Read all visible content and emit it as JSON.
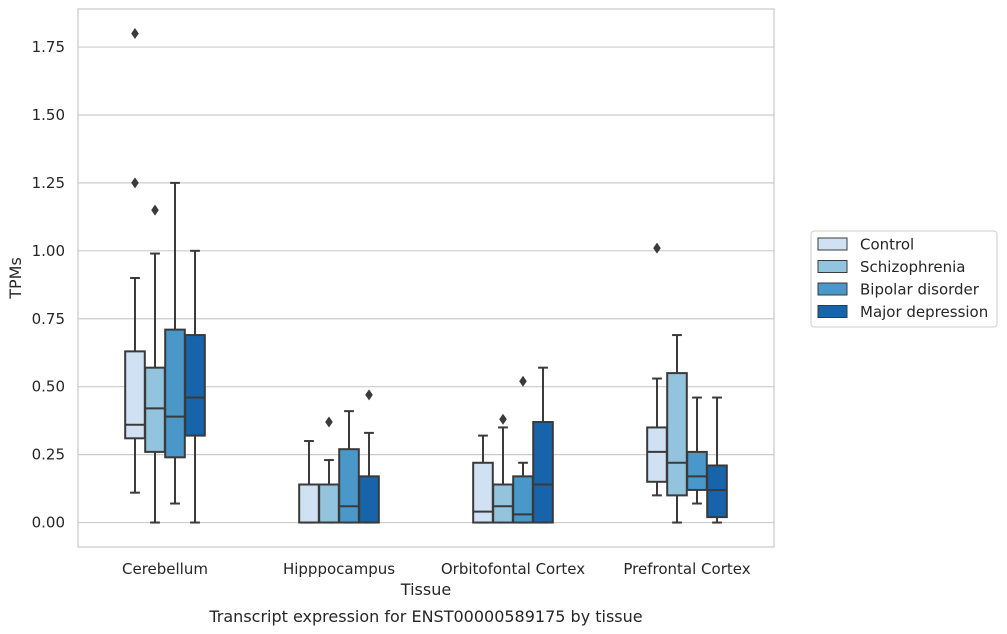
{
  "caption": "Transcript expression for ENST00000589175 by tissue",
  "chart_data": {
    "type": "box",
    "xlabel": "Tissue",
    "ylabel": "TPMs",
    "ylim": [
      -0.09,
      1.89
    ],
    "yticks": [
      0.0,
      0.25,
      0.5,
      0.75,
      1.0,
      1.25,
      1.5,
      1.75
    ],
    "ytick_labels": [
      "0.00",
      "0.25",
      "0.50",
      "0.75",
      "1.00",
      "1.25",
      "1.50",
      "1.75"
    ],
    "grid": "horizontal",
    "legend_position": "right",
    "categories": [
      "Cerebellum",
      "Hipppocampus",
      "Orbitofontal Cortex",
      "Prefrontal Cortex"
    ],
    "series": [
      {
        "name": "Control",
        "color": "#cfe1f2",
        "boxes": [
          {
            "whislo": 0.11,
            "q1": 0.31,
            "med": 0.36,
            "q3": 0.63,
            "whishi": 0.9,
            "fliers": [
              1.25,
              1.8
            ]
          },
          {
            "whislo": 0.0,
            "q1": 0.0,
            "med": 0.0,
            "q3": 0.14,
            "whishi": 0.3,
            "fliers": []
          },
          {
            "whislo": 0.0,
            "q1": 0.0,
            "med": 0.04,
            "q3": 0.22,
            "whishi": 0.32,
            "fliers": []
          },
          {
            "whislo": 0.1,
            "q1": 0.15,
            "med": 0.26,
            "q3": 0.35,
            "whishi": 0.53,
            "fliers": [
              1.01
            ]
          }
        ]
      },
      {
        "name": "Schizophrenia",
        "color": "#93c4de",
        "boxes": [
          {
            "whislo": 0.0,
            "q1": 0.26,
            "med": 0.42,
            "q3": 0.57,
            "whishi": 0.99,
            "fliers": [
              1.15
            ]
          },
          {
            "whislo": 0.0,
            "q1": 0.0,
            "med": 0.0,
            "q3": 0.14,
            "whishi": 0.23,
            "fliers": [
              0.37
            ]
          },
          {
            "whislo": 0.0,
            "q1": 0.0,
            "med": 0.06,
            "q3": 0.14,
            "whishi": 0.35,
            "fliers": [
              0.38
            ]
          },
          {
            "whislo": 0.0,
            "q1": 0.1,
            "med": 0.22,
            "q3": 0.55,
            "whishi": 0.69,
            "fliers": []
          }
        ]
      },
      {
        "name": "Bipolar disorder",
        "color": "#4a98c9",
        "boxes": [
          {
            "whislo": 0.07,
            "q1": 0.24,
            "med": 0.39,
            "q3": 0.71,
            "whishi": 1.25,
            "fliers": []
          },
          {
            "whislo": 0.0,
            "q1": 0.0,
            "med": 0.06,
            "q3": 0.27,
            "whishi": 0.41,
            "fliers": []
          },
          {
            "whislo": 0.0,
            "q1": 0.0,
            "med": 0.03,
            "q3": 0.17,
            "whishi": 0.22,
            "fliers": [
              0.52
            ]
          },
          {
            "whislo": 0.07,
            "q1": 0.12,
            "med": 0.17,
            "q3": 0.26,
            "whishi": 0.46,
            "fliers": []
          }
        ]
      },
      {
        "name": "Major depression",
        "color": "#1764ab",
        "boxes": [
          {
            "whislo": 0.0,
            "q1": 0.32,
            "med": 0.46,
            "q3": 0.69,
            "whishi": 1.0,
            "fliers": []
          },
          {
            "whislo": 0.0,
            "q1": 0.0,
            "med": 0.0,
            "q3": 0.17,
            "whishi": 0.33,
            "fliers": [
              0.47
            ]
          },
          {
            "whislo": 0.0,
            "q1": 0.0,
            "med": 0.14,
            "q3": 0.37,
            "whishi": 0.57,
            "fliers": []
          },
          {
            "whislo": 0.0,
            "q1": 0.02,
            "med": 0.12,
            "q3": 0.21,
            "whishi": 0.46,
            "fliers": []
          }
        ]
      }
    ]
  }
}
